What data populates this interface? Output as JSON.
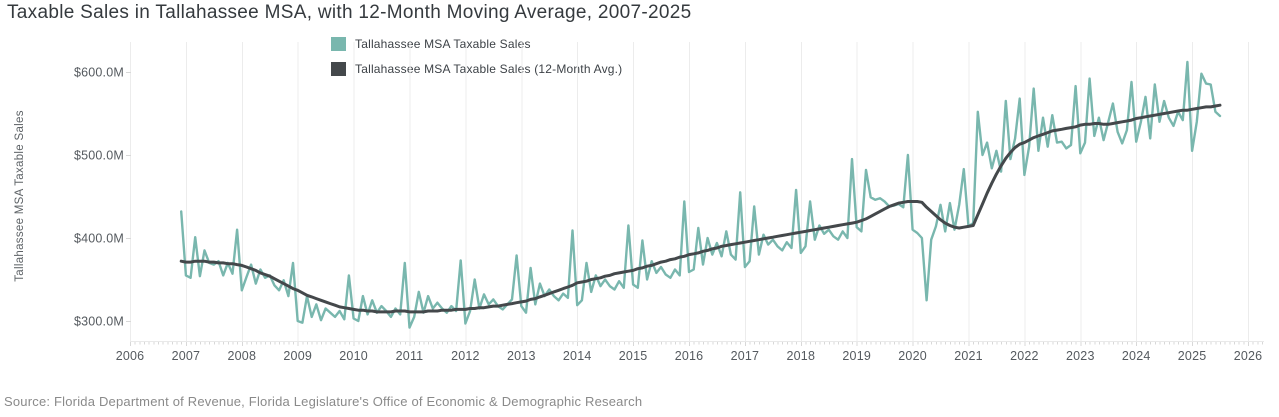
{
  "title": "Taxable Sales in Tallahassee MSA, with 12-Month Moving Average, 2007-2025",
  "y_axis_title": "Tallahassee MSA Taxable Sales",
  "source": "Source: Florida Department of Revenue, Florida Legislature's Office of Economic & Demographic Research",
  "colors": {
    "background": "#ffffff",
    "gridline": "#ececec",
    "axis_line": "#e9e9e9",
    "tick_mark": "#d8d8d8",
    "axis_text": "#555a5f",
    "title_text": "#353a3e",
    "source_text": "#8a8a8a",
    "series_monthly": "#79b7ae",
    "series_average": "#44484b"
  },
  "chart_data": {
    "type": "line",
    "title": "Taxable Sales in Tallahassee MSA, with 12-Month Moving Average, 2007-2025",
    "xlabel": "",
    "ylabel": "Tallahassee MSA Taxable Sales",
    "y_unit": "USD millions",
    "frequency": "monthly",
    "x_start": "2006-12",
    "x_end": "2025-07",
    "x_tick_labels": [
      "2006",
      "2007",
      "2008",
      "2009",
      "2010",
      "2011",
      "2012",
      "2013",
      "2014",
      "2015",
      "2016",
      "2017",
      "2018",
      "2019",
      "2020",
      "2021",
      "2022",
      "2023",
      "2024",
      "2025",
      "2026"
    ],
    "y_ticks": [
      {
        "label": "$300.0M",
        "value": 300
      },
      {
        "label": "$400.0M",
        "value": 400
      },
      {
        "label": "$500.0M",
        "value": 500
      },
      {
        "label": "$600.0M",
        "value": 600
      }
    ],
    "ylim": [
      280,
      625
    ],
    "grid": "vertical-yearly",
    "legend_position": "top",
    "series": [
      {
        "name": "Tallahassee MSA Taxable Sales",
        "color": "#79b7ae",
        "values": [
          432,
          355,
          352,
          401,
          354,
          385,
          370,
          368,
          372,
          355,
          370,
          357,
          410,
          337,
          353,
          368,
          345,
          362,
          352,
          355,
          343,
          337,
          349,
          330,
          370,
          300,
          298,
          330,
          305,
          320,
          301,
          315,
          310,
          305,
          312,
          302,
          355,
          303,
          300,
          330,
          308,
          325,
          310,
          318,
          312,
          305,
          315,
          308,
          370,
          292,
          305,
          335,
          310,
          330,
          315,
          322,
          315,
          310,
          318,
          312,
          373,
          297,
          312,
          350,
          315,
          332,
          320,
          326,
          318,
          314,
          320,
          326,
          379,
          318,
          310,
          364,
          320,
          345,
          330,
          338,
          330,
          325,
          333,
          328,
          409,
          319,
          325,
          370,
          335,
          355,
          342,
          350,
          342,
          338,
          348,
          340,
          415,
          344,
          340,
          397,
          350,
          372,
          358,
          365,
          356,
          352,
          362,
          355,
          444,
          359,
          362,
          412,
          368,
          400,
          380,
          394,
          378,
          408,
          380,
          374,
          455,
          365,
          372,
          438,
          380,
          404,
          392,
          398,
          390,
          385,
          395,
          388,
          458,
          382,
          390,
          444,
          398,
          415,
          405,
          410,
          402,
          398,
          408,
          400,
          495,
          413,
          408,
          482,
          449,
          446,
          448,
          444,
          438,
          439,
          441,
          437,
          500,
          410,
          406,
          400,
          325,
          398,
          414,
          440,
          408,
          442,
          410,
          440,
          483,
          414,
          418,
          552,
          500,
          515,
          484,
          505,
          480,
          565,
          495,
          520,
          568,
          476,
          510,
          580,
          505,
          545,
          510,
          548,
          515,
          516,
          508,
          512,
          583,
          502,
          515,
          592,
          523,
          545,
          518,
          540,
          562,
          528,
          514,
          530,
          588,
          516,
          540,
          570,
          520,
          585,
          540,
          565,
          545,
          535,
          552,
          542,
          612,
          505,
          540,
          598,
          586,
          585,
          552,
          547
        ]
      },
      {
        "name": "Tallahassee MSA Taxable Sales (12-Month Avg.)",
        "color": "#44484b",
        "values": [
          372,
          371,
          371,
          372,
          372,
          372,
          371,
          371,
          370,
          370,
          369,
          369,
          368,
          367,
          365,
          363,
          361,
          358,
          356,
          354,
          351,
          348,
          345,
          342,
          339,
          337,
          334,
          331,
          329,
          327,
          325,
          323,
          321,
          319,
          317,
          316,
          315,
          314,
          313,
          313,
          312,
          312,
          311,
          311,
          311,
          311,
          312,
          312,
          312,
          311,
          311,
          311,
          311,
          312,
          312,
          312,
          313,
          313,
          313,
          314,
          314,
          314,
          315,
          315,
          316,
          316,
          317,
          318,
          318,
          319,
          320,
          321,
          322,
          323,
          324,
          326,
          327,
          329,
          331,
          333,
          335,
          337,
          339,
          341,
          343,
          346,
          347,
          348,
          350,
          351,
          352,
          354,
          355,
          357,
          358,
          359,
          360,
          361,
          363,
          364,
          366,
          367,
          369,
          371,
          372,
          374,
          375,
          377,
          378,
          380,
          381,
          382,
          384,
          385,
          387,
          388,
          390,
          391,
          392,
          393,
          394,
          395,
          396,
          397,
          398,
          399,
          400,
          401,
          402,
          403,
          404,
          405,
          406,
          407,
          408,
          409,
          410,
          411,
          412,
          413,
          414,
          415,
          416,
          417,
          418,
          419,
          421,
          423,
          426,
          429,
          432,
          435,
          438,
          440,
          442,
          443,
          444,
          444,
          444,
          443,
          437,
          432,
          427,
          422,
          418,
          415,
          413,
          412,
          413,
          414,
          415,
          428,
          441,
          454,
          466,
          477,
          487,
          496,
          503,
          509,
          513,
          515,
          518,
          521,
          523,
          525,
          527,
          529,
          530,
          531,
          532,
          533,
          534,
          536,
          537,
          537,
          538,
          538,
          537,
          537,
          538,
          539,
          540,
          541,
          542,
          544,
          545,
          546,
          547,
          548,
          549,
          550,
          551,
          552,
          553,
          554,
          554,
          555,
          556,
          557,
          558,
          558,
          559,
          560
        ]
      }
    ]
  }
}
